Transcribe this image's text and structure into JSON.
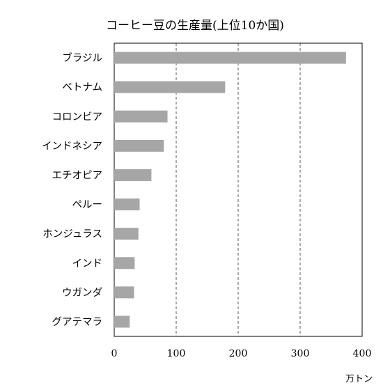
{
  "chart_data": {
    "type": "bar",
    "orientation": "horizontal",
    "title": "コーヒー豆の生産量(上位10か国)",
    "unit": "万トン",
    "categories": [
      "ブラジル",
      "ベトナム",
      "コロンビア",
      "インドネシア",
      "エチオピア",
      "ペルー",
      "ホンジュラス",
      "インド",
      "ウガンダ",
      "グアテマラ"
    ],
    "values": [
      374,
      179,
      86,
      80,
      60,
      41,
      39,
      33,
      32,
      25
    ],
    "xlim": [
      0,
      400
    ],
    "xticks": [
      "0",
      "100",
      "200",
      "300",
      "400"
    ],
    "grid": "vertical dashed",
    "bar_color": "#a6a6a6"
  }
}
